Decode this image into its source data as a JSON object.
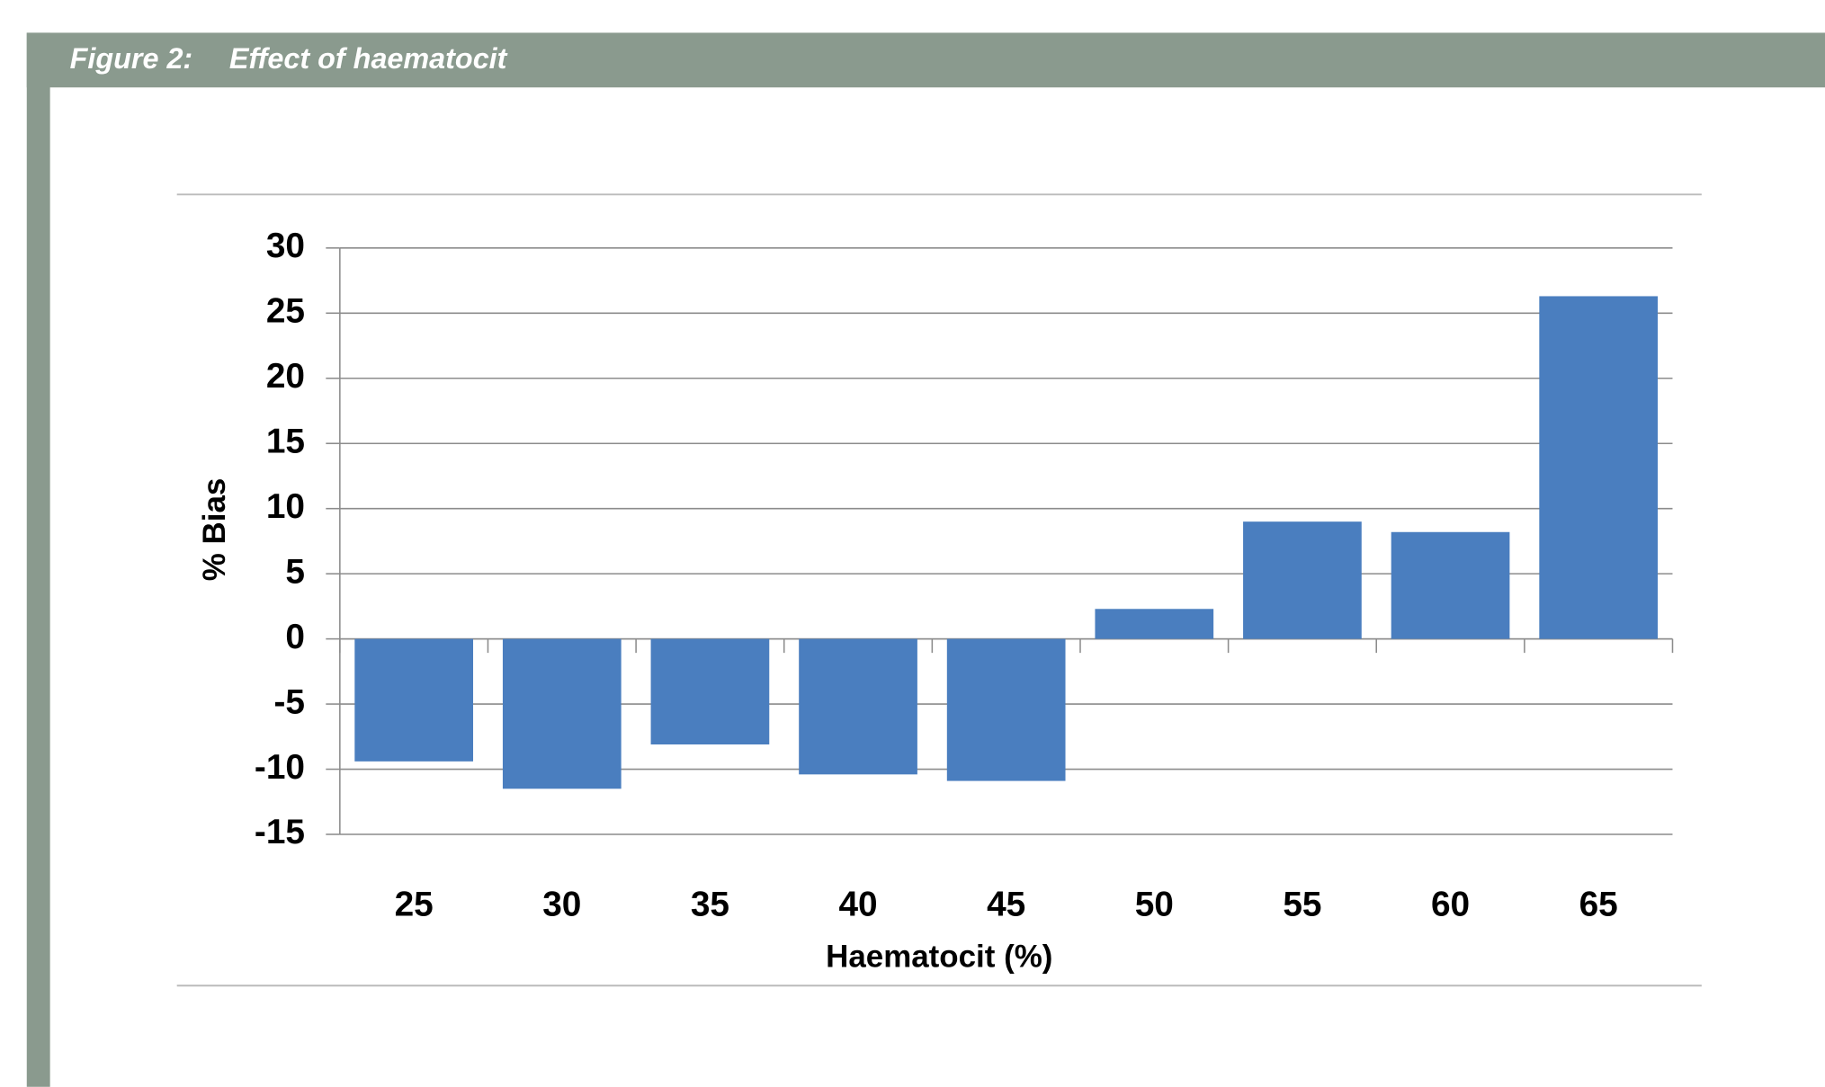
{
  "figure": {
    "label": "Figure 2:"
  },
  "chart_data": {
    "type": "bar",
    "title": "Effect of haematocit",
    "x_label": "Haematocit (%)",
    "y_label": "% Bias",
    "categories": [
      "25",
      "30",
      "35",
      "40",
      "45",
      "50",
      "55",
      "60",
      "65"
    ],
    "values": [
      -9.4,
      -11.5,
      -8.1,
      -10.4,
      -10.9,
      2.3,
      9.0,
      8.2,
      26.3
    ],
    "color": "#4a7ebf",
    "ylim": [
      -15,
      30
    ],
    "yticks": [
      -15,
      -10,
      -5,
      0,
      5,
      10,
      15,
      20,
      25,
      30
    ],
    "grid": true
  }
}
